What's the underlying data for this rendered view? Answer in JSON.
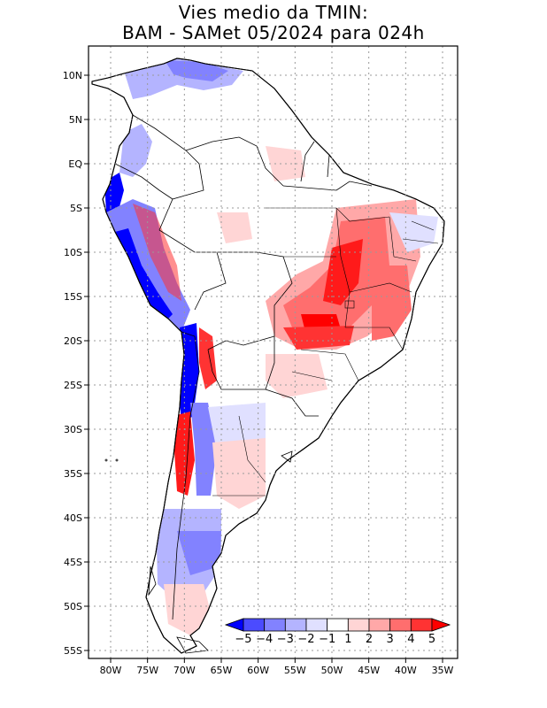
{
  "title": {
    "line1": "Vies medio da TMIN:",
    "line2": "BAM - SAMet 05/2024  para 024h"
  },
  "map": {
    "region": "South America",
    "lon_range": [
      -83,
      -34
    ],
    "lat_range": [
      -56,
      12
    ],
    "x_ticks": [
      {
        "lon": -80,
        "label": "80W"
      },
      {
        "lon": -75,
        "label": "75W"
      },
      {
        "lon": -70,
        "label": "70W"
      },
      {
        "lon": -65,
        "label": "65W"
      },
      {
        "lon": -60,
        "label": "60W"
      },
      {
        "lon": -55,
        "label": "55W"
      },
      {
        "lon": -50,
        "label": "50W"
      },
      {
        "lon": -45,
        "label": "45W"
      },
      {
        "lon": -40,
        "label": "40W"
      },
      {
        "lon": -35,
        "label": "35W"
      }
    ],
    "y_ticks": [
      {
        "lat": 10,
        "label": "10N"
      },
      {
        "lat": 5,
        "label": "5N"
      },
      {
        "lat": 0,
        "label": "EQ"
      },
      {
        "lat": -5,
        "label": "5S"
      },
      {
        "lat": -10,
        "label": "10S"
      },
      {
        "lat": -15,
        "label": "15S"
      },
      {
        "lat": -20,
        "label": "20S"
      },
      {
        "lat": -25,
        "label": "25S"
      },
      {
        "lat": -30,
        "label": "30S"
      },
      {
        "lat": -35,
        "label": "35S"
      },
      {
        "lat": -40,
        "label": "40S"
      },
      {
        "lat": -45,
        "label": "45S"
      },
      {
        "lat": -50,
        "label": "50S"
      },
      {
        "lat": -55,
        "label": "55S"
      }
    ]
  },
  "colorbar": {
    "labels": [
      "-5",
      "-4",
      "-3",
      "-2",
      "-1",
      "1",
      "2",
      "3",
      "4",
      "5"
    ],
    "colors": [
      "#0000ff",
      "#4b4bff",
      "#8282ff",
      "#b4b4ff",
      "#e0e0ff",
      "#ffffff",
      "#ffd5d5",
      "#ffa8a8",
      "#ff6e6e",
      "#ff3333",
      "#ff0000"
    ]
  }
}
